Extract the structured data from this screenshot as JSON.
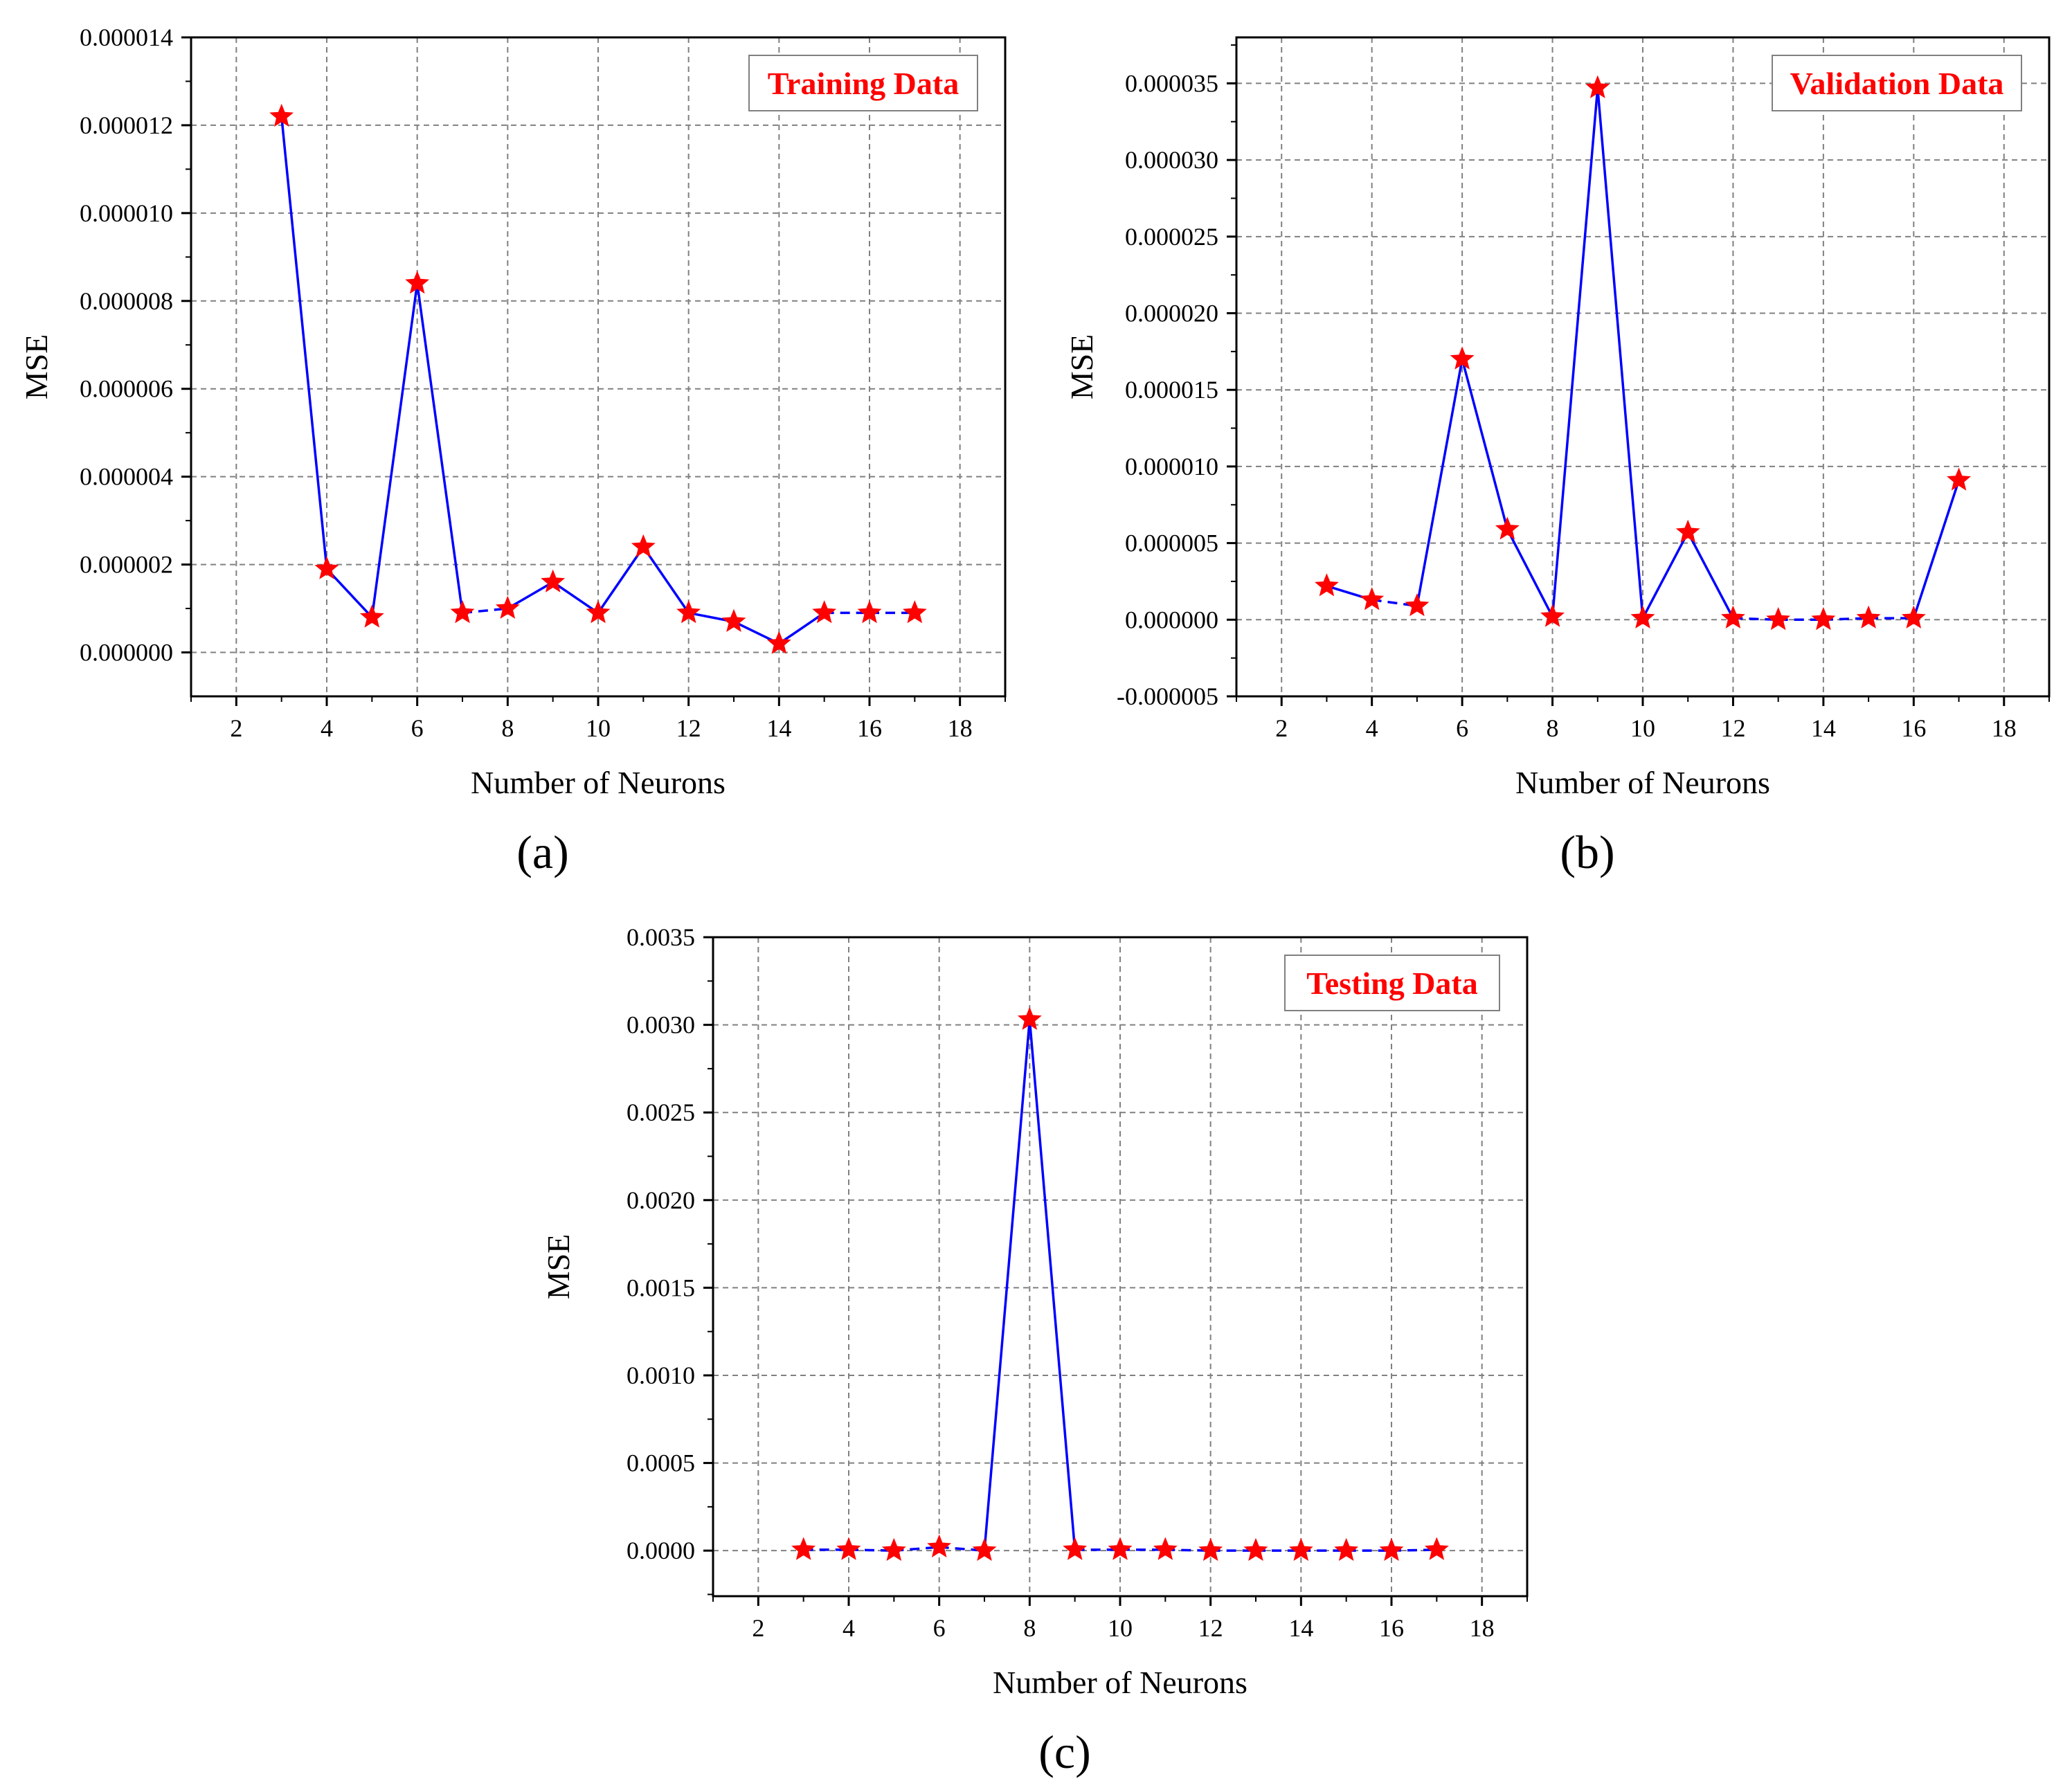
{
  "colors": {
    "line": "#0000ff",
    "marker": "#ff0000",
    "legend_text": "#ff0000",
    "grid": "#808080",
    "axis": "#000000"
  },
  "chart_data": [
    {
      "type": "line",
      "panel_label": "(a)",
      "legend": "Training Data",
      "legend_position": "top-right",
      "xlabel": "Number of Neurons",
      "ylabel": "MSE",
      "xlim": [
        1,
        19
      ],
      "ylim": [
        -1e-06,
        1.4e-05
      ],
      "xticks": [
        "2",
        "4",
        "6",
        "8",
        "10",
        "12",
        "14",
        "16",
        "18"
      ],
      "yticks": [
        "0.000000",
        "0.000002",
        "0.000004",
        "0.000006",
        "0.000008",
        "0.000010",
        "0.000012",
        "0.000014"
      ],
      "grid": true,
      "marker": "star",
      "line_style": "solid/dashed",
      "x": [
        3,
        4,
        5,
        6,
        7,
        8,
        9,
        10,
        11,
        12,
        13,
        14,
        15,
        16,
        17
      ],
      "series": [
        {
          "values": [
            1.22e-05,
            1.9e-06,
            8e-07,
            8.4e-06,
            9e-07,
            1e-06,
            1.6e-06,
            9e-07,
            2.4e-06,
            9e-07,
            7e-07,
            2e-07,
            9e-07,
            9e-07,
            9e-07
          ]
        }
      ]
    },
    {
      "type": "line",
      "panel_label": "(b)",
      "legend": "Validation Data",
      "legend_position": "top-right",
      "xlabel": "Number of Neurons",
      "ylabel": "MSE",
      "xlim": [
        1,
        19
      ],
      "ylim": [
        -5e-06,
        3.8e-05
      ],
      "xticks": [
        "2",
        "4",
        "6",
        "8",
        "10",
        "12",
        "14",
        "16",
        "18"
      ],
      "yticks": [
        "-0.000005",
        "0.000000",
        "0.000005",
        "0.000010",
        "0.000015",
        "0.000020",
        "0.000025",
        "0.000030",
        "0.000035"
      ],
      "grid": true,
      "marker": "star",
      "line_style": "solid/dashed",
      "x": [
        3,
        4,
        5,
        6,
        7,
        8,
        9,
        10,
        11,
        12,
        13,
        14,
        15,
        16,
        17
      ],
      "series": [
        {
          "values": [
            2.2e-06,
            1.3e-06,
            9e-07,
            1.7e-05,
            5.9e-06,
            2e-07,
            3.47e-05,
            1e-07,
            5.7e-06,
            1e-07,
            0.0,
            0.0,
            1e-07,
            1e-07,
            9.1e-06
          ]
        }
      ]
    },
    {
      "type": "line",
      "panel_label": "(c)",
      "legend": "Testing Data",
      "legend_position": "top-right",
      "xlabel": "Number of Neurons",
      "ylabel": "MSE",
      "xlim": [
        1,
        19
      ],
      "ylim": [
        -0.00026,
        0.0035
      ],
      "xticks": [
        "2",
        "4",
        "6",
        "8",
        "10",
        "12",
        "14",
        "16",
        "18"
      ],
      "yticks": [
        "0.0000",
        "0.0005",
        "0.0010",
        "0.0015",
        "0.0020",
        "0.0025",
        "0.0030",
        "0.0035"
      ],
      "grid": true,
      "marker": "star",
      "line_style": "solid/dashed",
      "x": [
        3,
        4,
        5,
        6,
        7,
        8,
        9,
        10,
        11,
        12,
        13,
        14,
        15,
        16,
        17
      ],
      "series": [
        {
          "values": [
            5e-06,
            5e-06,
            0.0,
            2e-05,
            0.0,
            0.00303,
            5e-06,
            5e-06,
            5e-06,
            0.0,
            0.0,
            0.0,
            0.0,
            0.0,
            5e-06
          ]
        }
      ]
    }
  ]
}
